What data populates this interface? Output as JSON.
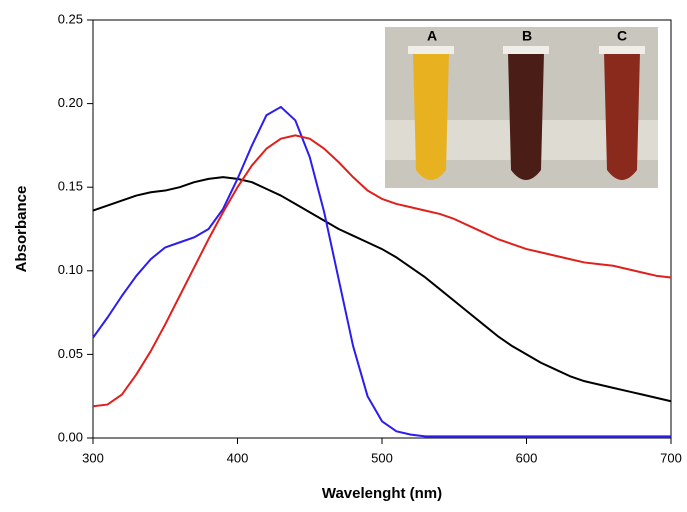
{
  "chart_data": {
    "type": "line",
    "xlabel": "Wavelenght (nm)",
    "ylabel": "Absorbance",
    "xlim": [
      300,
      700
    ],
    "ylim": [
      0,
      0.25
    ],
    "xticks": [
      300,
      400,
      500,
      600,
      700
    ],
    "yticks": [
      {
        "value": 0,
        "label": "0.00"
      },
      0.05,
      {
        "value": 0.1,
        "label": "0.10"
      },
      0.15,
      {
        "value": 0.2,
        "label": "0.20"
      },
      0.25
    ],
    "x": [
      300,
      310,
      320,
      330,
      340,
      350,
      360,
      370,
      380,
      390,
      400,
      410,
      420,
      430,
      440,
      450,
      460,
      470,
      480,
      490,
      500,
      510,
      520,
      530,
      540,
      550,
      560,
      570,
      580,
      590,
      600,
      610,
      620,
      630,
      640,
      650,
      660,
      670,
      680,
      690,
      700
    ],
    "series": [
      {
        "color": "#000000",
        "values": [
          0.136,
          0.139,
          0.142,
          0.145,
          0.147,
          0.148,
          0.15,
          0.153,
          0.155,
          0.156,
          0.155,
          0.153,
          0.149,
          0.145,
          0.14,
          0.135,
          0.13,
          0.125,
          0.121,
          0.117,
          0.113,
          0.108,
          0.102,
          0.096,
          0.089,
          0.082,
          0.075,
          0.068,
          0.061,
          0.055,
          0.05,
          0.045,
          0.041,
          0.037,
          0.034,
          0.032,
          0.03,
          0.028,
          0.026,
          0.024,
          0.022
        ]
      },
      {
        "color": "#2b1cf0",
        "values": [
          0.06,
          0.072,
          0.085,
          0.097,
          0.107,
          0.114,
          0.117,
          0.12,
          0.125,
          0.137,
          0.155,
          0.175,
          0.193,
          0.198,
          0.19,
          0.168,
          0.135,
          0.095,
          0.055,
          0.025,
          0.01,
          0.004,
          0.002,
          0.001,
          0.001,
          0.001,
          0.001,
          0.001,
          0.001,
          0.001,
          0.001,
          0.001,
          0.001,
          0.001,
          0.001,
          0.001,
          0.001,
          0.001,
          0.001,
          0.001,
          0.001
        ]
      },
      {
        "color": "#e0201c",
        "values": [
          0.019,
          0.02,
          0.026,
          0.038,
          0.052,
          0.068,
          0.085,
          0.102,
          0.119,
          0.135,
          0.15,
          0.163,
          0.173,
          0.179,
          0.181,
          0.179,
          0.173,
          0.165,
          0.156,
          0.148,
          0.143,
          0.14,
          0.138,
          0.136,
          0.134,
          0.131,
          0.127,
          0.123,
          0.119,
          0.116,
          0.113,
          0.111,
          0.109,
          0.107,
          0.105,
          0.104,
          0.103,
          0.101,
          0.099,
          0.097,
          0.096
        ]
      }
    ],
    "inset_labels": [
      "A",
      "B",
      "C"
    ]
  }
}
